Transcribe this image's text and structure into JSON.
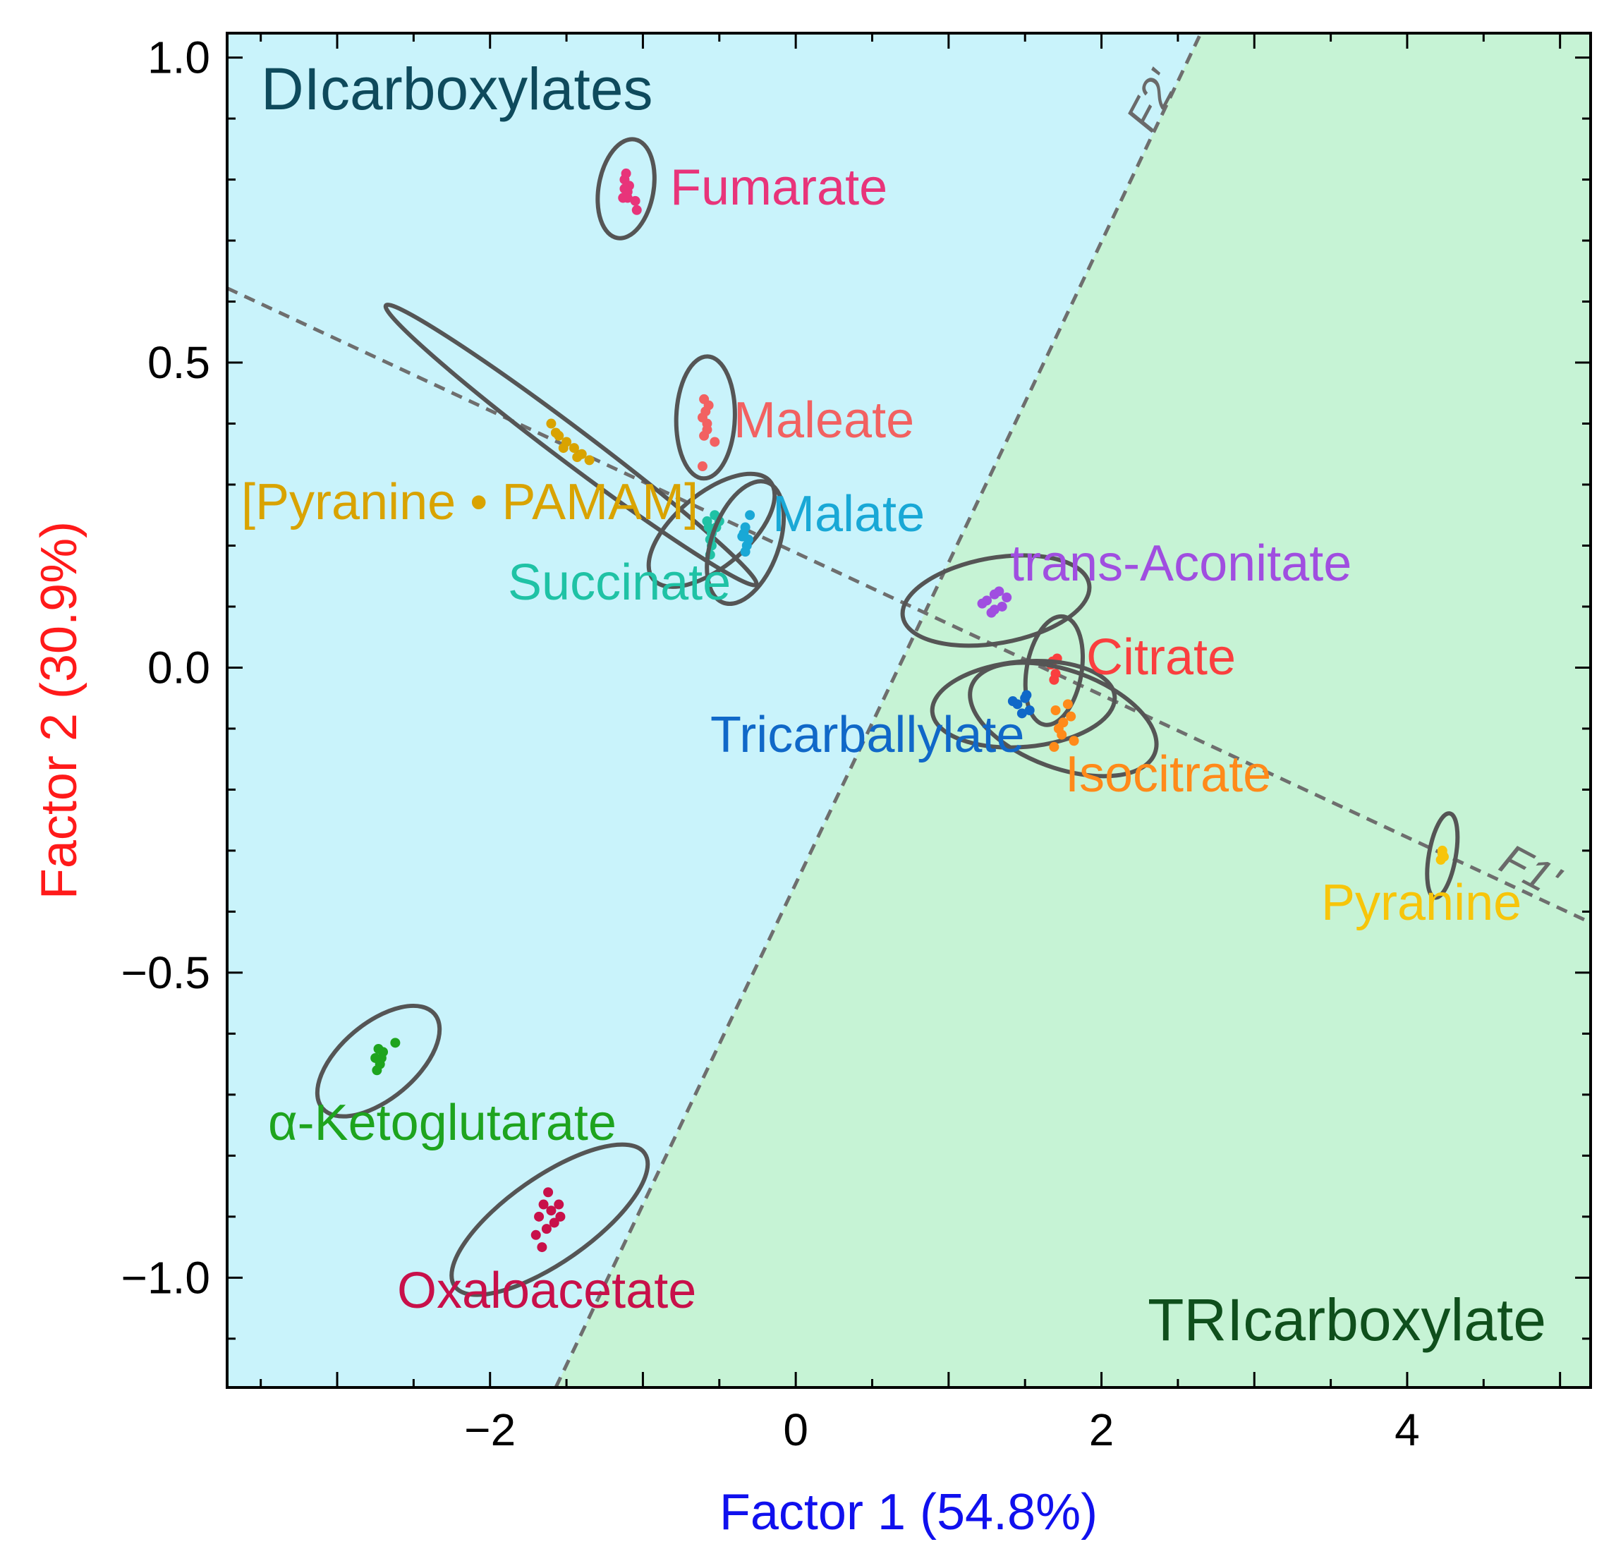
{
  "chart_data": {
    "type": "scatter",
    "title": "",
    "xlabel": "Factor 1 (54.8%)",
    "ylabel": "Factor 2 (30.9%)",
    "xlim": [
      -3.72,
      5.2
    ],
    "ylim": [
      -1.18,
      1.04
    ],
    "xticks": [
      -2,
      0,
      2,
      4
    ],
    "xtick_labels": [
      "−2",
      "0",
      "2",
      "4"
    ],
    "yticks": [
      -1.0,
      -0.5,
      0.0,
      0.5,
      1.0
    ],
    "ytick_labels": [
      "−1.0",
      "−0.5",
      "0.0",
      "0.5",
      "1.0"
    ],
    "grid": false,
    "regions": [
      {
        "name": "DIcarboxylates",
        "color": "#c9f3fb",
        "label_color": "#0e4a5c",
        "side": "left-of-F2'",
        "label_position": "top-left"
      },
      {
        "name": "TRIcarboxylate",
        "color": "#c6f3d5",
        "label_color": "#0f4f1c",
        "side": "right-of-F2'",
        "label_position": "bottom-right"
      }
    ],
    "lines": [
      {
        "name": "F1'",
        "points": [
          [
            -3.72,
            0.622
          ],
          [
            5.2,
            -0.418
          ]
        ],
        "label_at": [
          4.62,
          -0.32
        ]
      },
      {
        "name": "F2'",
        "points": [
          [
            -1.57,
            -1.18
          ],
          [
            2.65,
            1.04
          ]
        ],
        "label_at": [
          2.42,
          0.93
        ]
      }
    ],
    "axis_title_colors": {
      "x": "#1010ee",
      "y": "#ff1a1a"
    },
    "series": [
      {
        "name": "Fumarate",
        "color": "#e8347a",
        "center": [
          -1.11,
          0.785
        ],
        "ellipse": {
          "rx": 0.082,
          "ry": 0.045,
          "angle": 80
        },
        "points": [
          [
            -1.12,
            0.8
          ],
          [
            -1.1,
            0.78
          ],
          [
            -1.13,
            0.77
          ],
          [
            -1.09,
            0.79
          ],
          [
            -1.11,
            0.81
          ],
          [
            -1.12,
            0.785
          ],
          [
            -1.1,
            0.77
          ],
          [
            -1.05,
            0.765
          ],
          [
            -1.04,
            0.75
          ]
        ]
      },
      {
        "name": "Maleate",
        "color": "#f26161",
        "center": [
          -0.59,
          0.41
        ],
        "ellipse": {
          "rx": 0.1,
          "ry": 0.048,
          "angle": 88
        },
        "points": [
          [
            -0.6,
            0.44
          ],
          [
            -0.59,
            0.42
          ],
          [
            -0.58,
            0.4
          ],
          [
            -0.6,
            0.38
          ],
          [
            -0.57,
            0.43
          ],
          [
            -0.61,
            0.41
          ],
          [
            -0.58,
            0.39
          ],
          [
            -0.53,
            0.37
          ],
          [
            -0.61,
            0.33
          ]
        ]
      },
      {
        "name": "[Pyranine • PAMAM]",
        "color": "#d9a300",
        "center": [
          -1.47,
          0.365
        ],
        "ellipse": {
          "rx": 0.38,
          "ry": 0.028,
          "angle": -37
        },
        "points": [
          [
            -1.6,
            0.4
          ],
          [
            -1.55,
            0.38
          ],
          [
            -1.5,
            0.37
          ],
          [
            -1.45,
            0.36
          ],
          [
            -1.4,
            0.35
          ],
          [
            -1.35,
            0.34
          ],
          [
            -1.52,
            0.36
          ],
          [
            -1.43,
            0.345
          ],
          [
            -1.57,
            0.385
          ]
        ]
      },
      {
        "name": "Succinate",
        "color": "#1fc2a5",
        "center": [
          -0.55,
          0.225
        ],
        "ellipse": {
          "rx": 0.125,
          "ry": 0.06,
          "angle": 40
        },
        "points": [
          [
            -0.58,
            0.24
          ],
          [
            -0.55,
            0.22
          ],
          [
            -0.52,
            0.23
          ],
          [
            -0.56,
            0.21
          ],
          [
            -0.53,
            0.25
          ],
          [
            -0.57,
            0.23
          ],
          [
            -0.55,
            0.2
          ],
          [
            -0.56,
            0.185
          ],
          [
            -0.5,
            0.24
          ]
        ]
      },
      {
        "name": "Malate",
        "color": "#19a8d6",
        "center": [
          -0.33,
          0.205
        ],
        "ellipse": {
          "rx": 0.105,
          "ry": 0.055,
          "angle": 70
        },
        "points": [
          [
            -0.34,
            0.22
          ],
          [
            -0.32,
            0.2
          ],
          [
            -0.33,
            0.19
          ],
          [
            -0.31,
            0.21
          ],
          [
            -0.35,
            0.215
          ],
          [
            -0.33,
            0.23
          ],
          [
            -0.3,
            0.25
          ]
        ]
      },
      {
        "name": "trans-Aconitate",
        "color": "#a04ee0",
        "center": [
          1.31,
          0.11
        ],
        "ellipse": {
          "rx": 0.155,
          "ry": 0.07,
          "angle": 10
        },
        "points": [
          [
            1.25,
            0.11
          ],
          [
            1.3,
            0.12
          ],
          [
            1.35,
            0.1
          ],
          [
            1.28,
            0.09
          ],
          [
            1.33,
            0.125
          ],
          [
            1.22,
            0.105
          ],
          [
            1.38,
            0.115
          ],
          [
            1.3,
            0.095
          ]
        ]
      },
      {
        "name": "Citrate",
        "color": "#fa3f3f",
        "center": [
          1.69,
          -0.005
        ],
        "ellipse": {
          "rx": 0.09,
          "ry": 0.045,
          "angle": 80
        },
        "points": [
          [
            1.68,
            0.01
          ],
          [
            1.7,
            -0.01
          ],
          [
            1.69,
            -0.02
          ],
          [
            1.67,
            0.005
          ],
          [
            1.71,
            0.015
          ]
        ]
      },
      {
        "name": "Tricarballylate",
        "color": "#1068c8",
        "center": [
          1.49,
          -0.06
        ],
        "ellipse": {
          "rx": 0.15,
          "ry": 0.07,
          "angle": 5
        },
        "points": [
          [
            1.45,
            -0.06
          ],
          [
            1.5,
            -0.05
          ],
          [
            1.53,
            -0.07
          ],
          [
            1.48,
            -0.075
          ],
          [
            1.42,
            -0.055
          ],
          [
            1.51,
            -0.045
          ]
        ]
      },
      {
        "name": "Isocitrate",
        "color": "#ff8a1a",
        "center": [
          1.75,
          -0.085
        ],
        "ellipse": {
          "rx": 0.16,
          "ry": 0.08,
          "angle": -20
        },
        "points": [
          [
            1.7,
            -0.07
          ],
          [
            1.75,
            -0.09
          ],
          [
            1.8,
            -0.08
          ],
          [
            1.72,
            -0.1
          ],
          [
            1.78,
            -0.06
          ],
          [
            1.69,
            -0.13
          ],
          [
            1.82,
            -0.12
          ],
          [
            1.74,
            -0.11
          ]
        ]
      },
      {
        "name": "Pyranine",
        "color": "#f7c50a",
        "center": [
          4.23,
          -0.308
        ],
        "ellipse": {
          "rx": 0.07,
          "ry": 0.022,
          "angle": 80
        },
        "points": [
          [
            4.23,
            -0.3
          ],
          [
            4.24,
            -0.31
          ],
          [
            4.22,
            -0.315
          ],
          [
            4.23,
            -0.305
          ]
        ]
      },
      {
        "name": "α-Ketoglutarate",
        "color": "#1ea41e",
        "center": [
          -2.73,
          -0.645
        ],
        "ellipse": {
          "rx": 0.12,
          "ry": 0.062,
          "angle": 40
        },
        "points": [
          [
            -2.75,
            -0.64
          ],
          [
            -2.72,
            -0.65
          ],
          [
            -2.7,
            -0.63
          ],
          [
            -2.74,
            -0.66
          ],
          [
            -2.71,
            -0.64
          ],
          [
            -2.73,
            -0.625
          ],
          [
            -2.62,
            -0.615
          ]
        ]
      },
      {
        "name": "Oxaloacetate",
        "color": "#c8104a",
        "center": [
          -1.61,
          -0.905
        ],
        "ellipse": {
          "rx": 0.19,
          "ry": 0.07,
          "angle": 35
        },
        "points": [
          [
            -1.65,
            -0.88
          ],
          [
            -1.6,
            -0.89
          ],
          [
            -1.58,
            -0.91
          ],
          [
            -1.63,
            -0.92
          ],
          [
            -1.55,
            -0.88
          ],
          [
            -1.68,
            -0.9
          ],
          [
            -1.62,
            -0.86
          ],
          [
            -1.54,
            -0.9
          ],
          [
            -1.7,
            -0.93
          ],
          [
            -1.66,
            -0.95
          ]
        ]
      }
    ]
  },
  "labels": {
    "fumarate": "Fumarate",
    "maleate": "Maleate",
    "pyranine_pamam": "[Pyranine • PAMAM]",
    "malate": "Malate",
    "succinate": "Succinate",
    "trans_aconitate": "trans-Aconitate",
    "citrate": "Citrate",
    "tricarballylate": "Tricarballylate",
    "isocitrate": "Isocitrate",
    "pyranine": "Pyranine",
    "ketoglutarate": "α-Ketoglutarate",
    "oxaloacetate": "Oxaloacetate",
    "dicarboxylates": "DIcarboxylates",
    "tricarboxylate": "TRIcarboxylate",
    "f1": "F1'",
    "f2": "F2'"
  }
}
